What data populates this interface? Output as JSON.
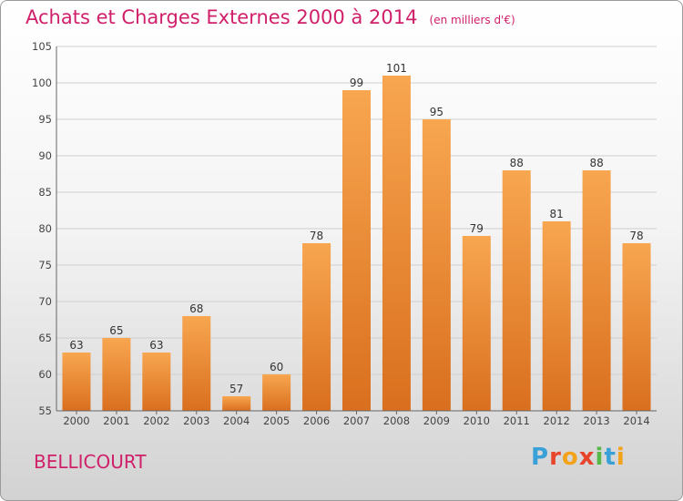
{
  "chart_title": "Achats et Charges Externes 2000 à 2014",
  "chart_unit": "(en milliers d'€)",
  "commune": "BELLICOURT",
  "logo": {
    "text": "Proxiti",
    "letter_colors": [
      "#3aa0d8",
      "#e8432b",
      "#f2a21b",
      "#e8432b",
      "#58b847",
      "#3aa0d8",
      "#f2a21b"
    ]
  },
  "colors": {
    "bar_top": "#f8a650",
    "bar_bottom": "#d96f1e",
    "grid": "#cfcfcf",
    "title": "#d0206a"
  },
  "chart_data": {
    "type": "bar",
    "title": "Achats et Charges Externes 2000 à 2014",
    "subtitle": "(en milliers d'€)",
    "categories": [
      "2000",
      "2001",
      "2002",
      "2003",
      "2004",
      "2005",
      "2006",
      "2007",
      "2008",
      "2009",
      "2010",
      "2011",
      "2012",
      "2013",
      "2014"
    ],
    "values": [
      63,
      65,
      63,
      68,
      57,
      60,
      78,
      99,
      101,
      95,
      79,
      88,
      81,
      88,
      78
    ],
    "ylim": [
      55,
      105
    ],
    "yticks": [
      55,
      60,
      65,
      70,
      75,
      80,
      85,
      90,
      95,
      100,
      105
    ],
    "grid": true,
    "xlabel": "",
    "ylabel": ""
  }
}
